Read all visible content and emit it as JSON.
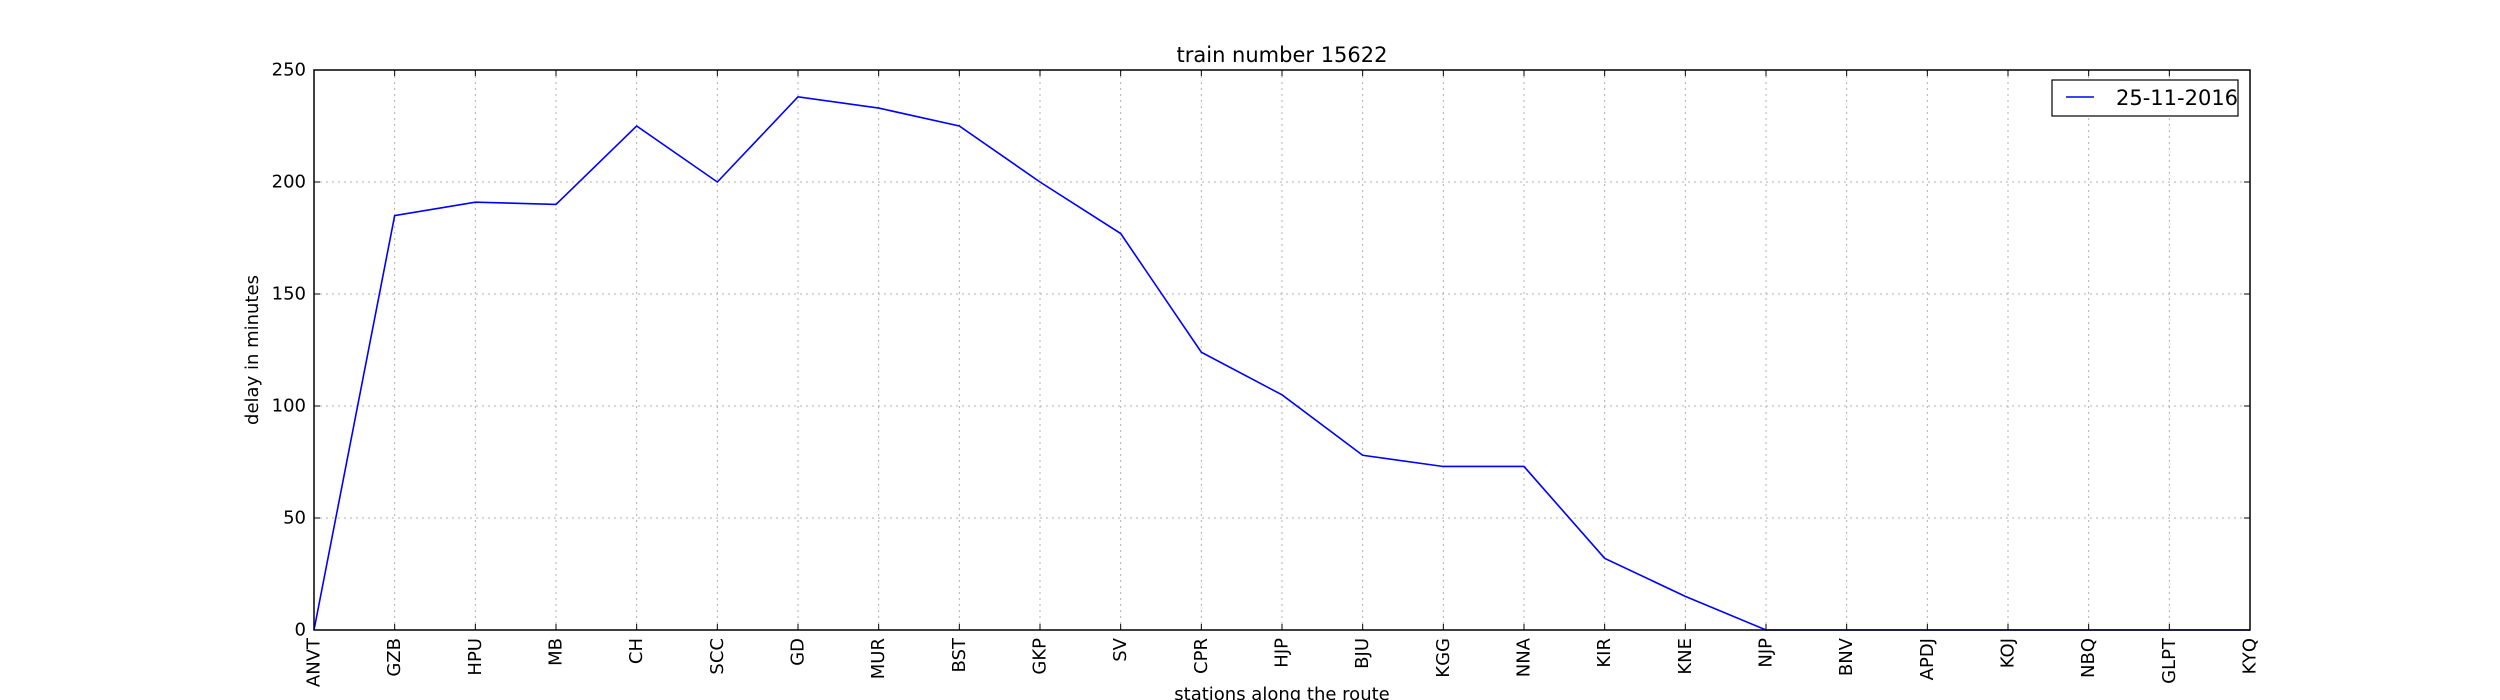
{
  "chart_data": {
    "type": "line",
    "title": "train number 15622",
    "xlabel": "stations along the route",
    "ylabel": "delay in minutes",
    "categories": [
      "ANVT",
      "GZB",
      "HPU",
      "MB",
      "CH",
      "SCC",
      "GD",
      "MUR",
      "BST",
      "GKP",
      "SV",
      "CPR",
      "HJP",
      "BJU",
      "KGG",
      "NNA",
      "KIR",
      "KNE",
      "NJP",
      "BNV",
      "APDJ",
      "KOJ",
      "NBQ",
      "GLPT",
      "KYQ"
    ],
    "series": [
      {
        "name": "25-11-2016",
        "color": "#0000ff",
        "values": [
          0,
          185,
          191,
          190,
          225,
          200,
          238,
          233,
          225,
          200,
          177,
          124,
          105,
          78,
          73,
          73,
          32,
          15,
          0,
          0,
          0,
          0,
          0,
          0,
          0
        ]
      }
    ],
    "ylim": [
      0,
      250
    ],
    "yticks": [
      0,
      50,
      100,
      150,
      200,
      250
    ],
    "grid": true,
    "legend_position": "top-right"
  }
}
